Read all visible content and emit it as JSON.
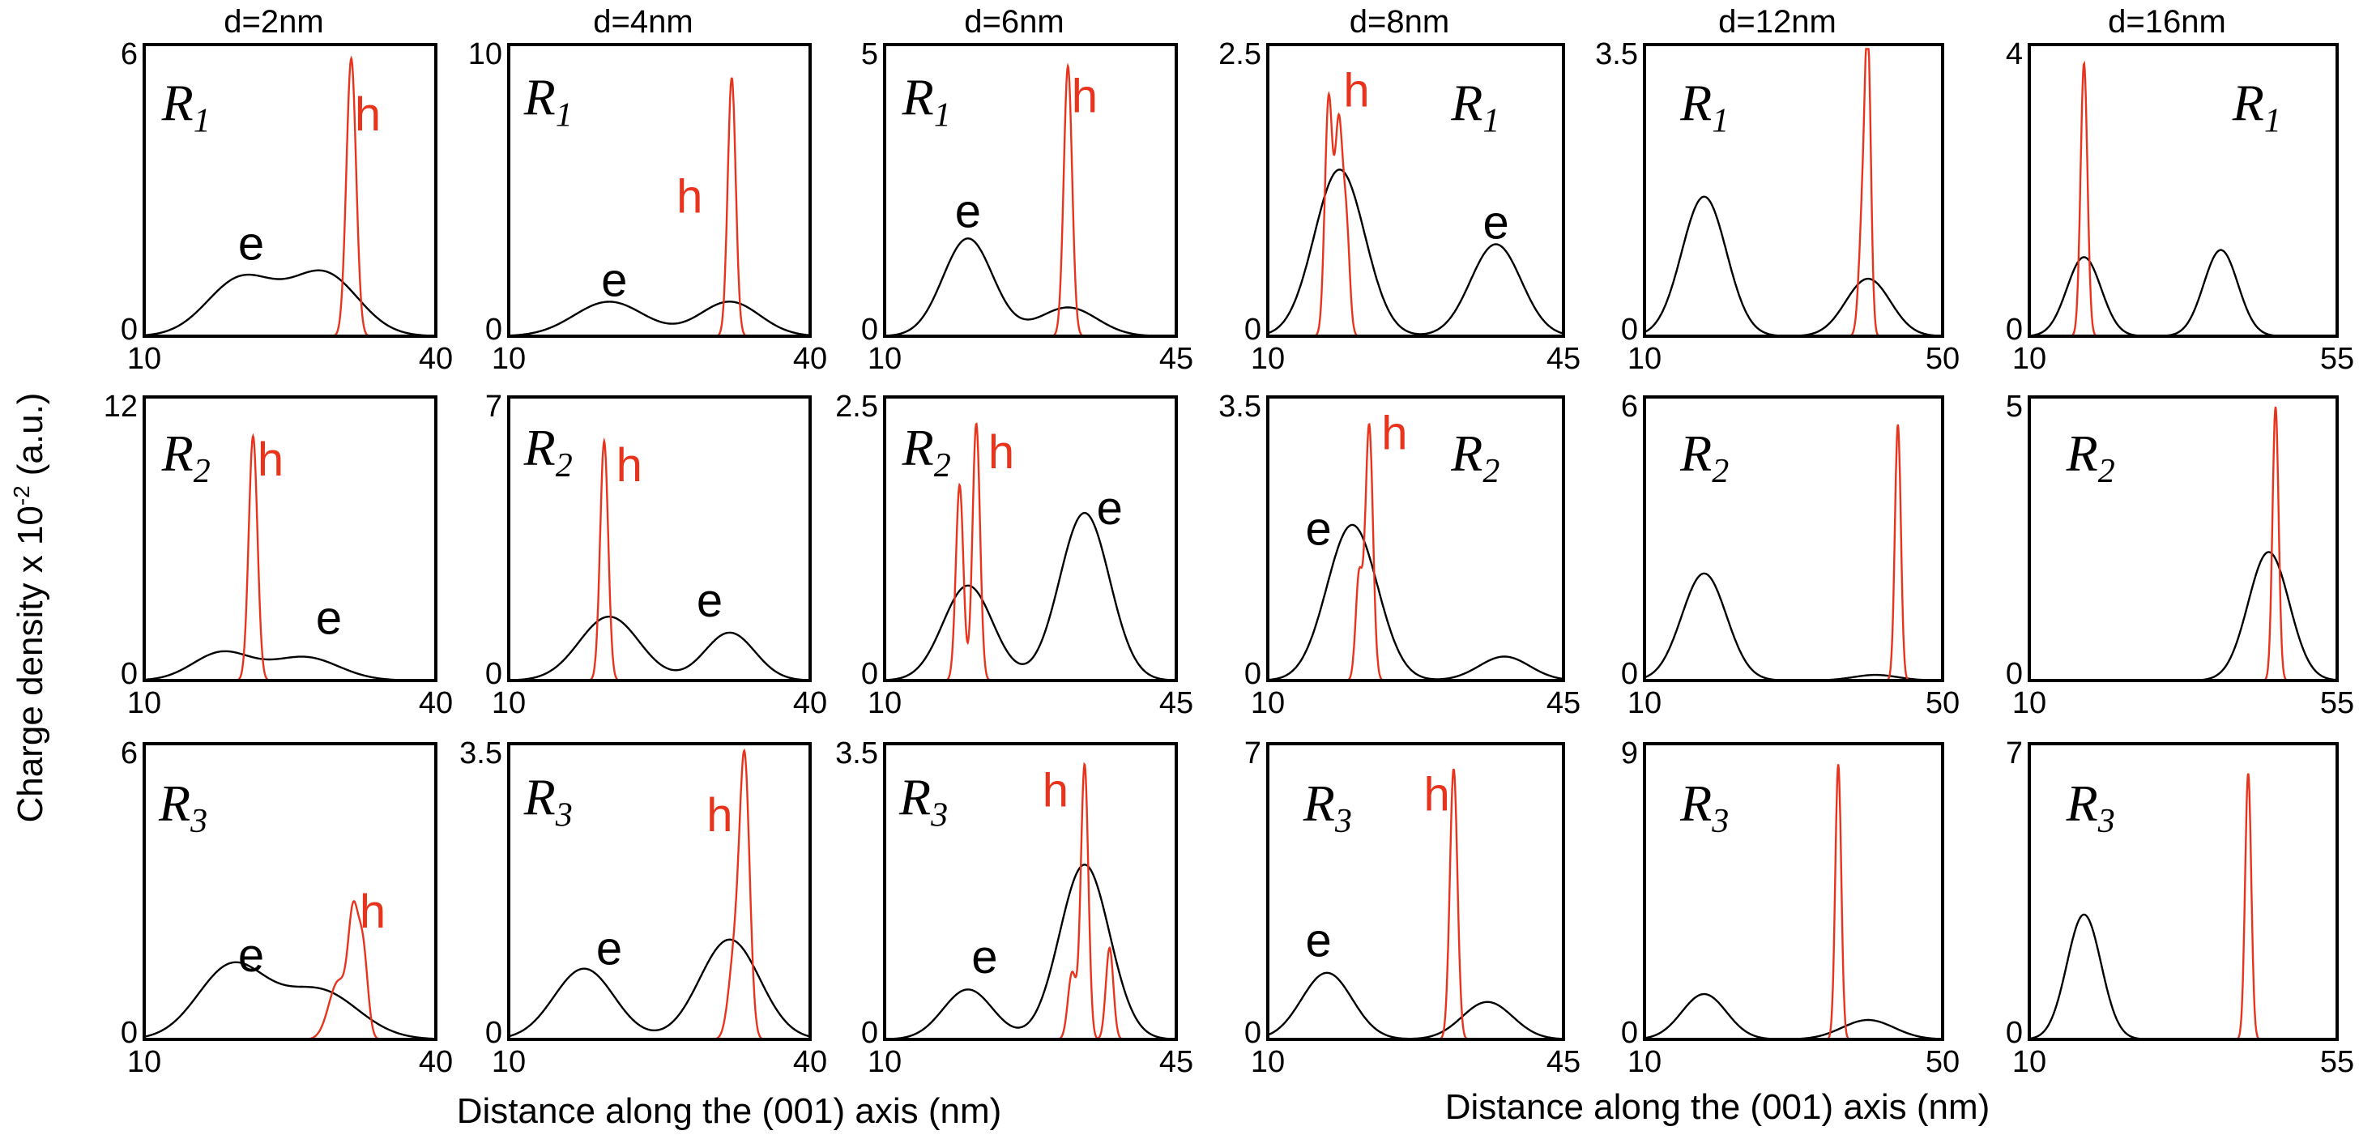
{
  "figure": {
    "y_axis_label": "Charge density x 10",
    "y_axis_exp": "-2",
    "y_axis_unit": "(a.u.)",
    "x_axis_labels": [
      "Distance along the (001) axis (nm)",
      "Distance along the (001) axis (nm)"
    ],
    "colors": {
      "electron": "#000000",
      "hole": "#e8341c"
    }
  },
  "chart_data": [
    {
      "type": "line",
      "column": "d=2nm",
      "row": "R",
      "row_sub": "1",
      "xlim": [
        10,
        40
      ],
      "ylim": [
        0,
        6
      ],
      "xticks": [
        "10",
        "40"
      ],
      "yticks": [
        "0",
        "6"
      ],
      "series": [
        {
          "name": "e",
          "color": "#000000",
          "peaks": [
            [
              20,
              1.2,
              3.5
            ],
            [
              28.5,
              1.3,
              3.5
            ]
          ]
        },
        {
          "name": "h",
          "color": "#e8341c",
          "peaks": [
            [
              31.3,
              5.8,
              0.5
            ]
          ]
        }
      ],
      "annotations": [
        {
          "text": "e",
          "x": 21,
          "y": 1.6
        },
        {
          "text": "h",
          "x": 33,
          "y": 4.3
        }
      ]
    },
    {
      "type": "line",
      "column": "d=4nm",
      "row": "R",
      "row_sub": "1",
      "xlim": [
        10,
        40
      ],
      "ylim": [
        0,
        10
      ],
      "xticks": [
        "10",
        "40"
      ],
      "yticks": [
        "0",
        "10"
      ],
      "series": [
        {
          "name": "e",
          "color": "#000000",
          "peaks": [
            [
              20,
              1.2,
              3.5
            ],
            [
              32,
              1.2,
              3
            ]
          ]
        },
        {
          "name": "h",
          "color": "#e8341c",
          "peaks": [
            [
              32.2,
              9,
              0.4
            ]
          ]
        }
      ],
      "annotations": [
        {
          "text": "e",
          "x": 20.5,
          "y": 1.4
        },
        {
          "text": "h",
          "x": 28,
          "y": 4.3
        }
      ]
    },
    {
      "type": "line",
      "column": "d=6nm",
      "row": "R",
      "row_sub": "1",
      "xlim": [
        10,
        45
      ],
      "ylim": [
        0,
        5
      ],
      "xticks": [
        "10",
        "45"
      ],
      "yticks": [
        "0",
        "5"
      ],
      "series": [
        {
          "name": "e",
          "color": "#000000",
          "peaks": [
            [
              20,
              1.7,
              3
            ],
            [
              32,
              0.5,
              3.5
            ]
          ]
        },
        {
          "name": "h",
          "color": "#e8341c",
          "peaks": [
            [
              32,
              4.7,
              0.5
            ]
          ]
        }
      ],
      "annotations": [
        {
          "text": "e",
          "x": 20,
          "y": 1.9
        },
        {
          "text": "h",
          "x": 34,
          "y": 3.9
        }
      ]
    },
    {
      "type": "line",
      "column": "d=8nm",
      "row": "R",
      "row_sub": "1",
      "xlim": [
        10,
        45
      ],
      "ylim": [
        0,
        2.5
      ],
      "xticks": [
        "10",
        "45"
      ],
      "yticks": [
        "0",
        "2.5"
      ],
      "series": [
        {
          "name": "e",
          "color": "#000000",
          "peaks": [
            [
              18.5,
              1.45,
              3
            ],
            [
              37,
              0.8,
              3
            ]
          ]
        },
        {
          "name": "h",
          "color": "#e8341c",
          "peaks": [
            [
              17.2,
              2.05,
              0.45
            ],
            [
              18.4,
              1.8,
              0.45
            ],
            [
              19.3,
              0.9,
              0.4
            ]
          ]
        }
      ],
      "annotations": [
        {
          "text": "e",
          "x": 37,
          "y": 0.85
        },
        {
          "text": "h",
          "x": 20.5,
          "y": 2.0
        }
      ]
    },
    {
      "type": "line",
      "column": "d=12nm",
      "row": "R",
      "row_sub": "1",
      "xlim": [
        10,
        50
      ],
      "ylim": [
        0,
        3.5
      ],
      "xticks": [
        "10",
        "50"
      ],
      "yticks": [
        "0",
        "3.5"
      ],
      "series": [
        {
          "name": "e",
          "color": "#000000",
          "peaks": [
            [
              18,
              1.7,
              3
            ],
            [
              40,
              0.7,
              3
            ]
          ]
        },
        {
          "name": "h",
          "color": "#e8341c",
          "peaks": [
            [
              40,
              3.2,
              0.4
            ],
            [
              39.3,
              1.5,
              0.5
            ]
          ]
        }
      ],
      "annotations": []
    },
    {
      "type": "line",
      "column": "d=16nm",
      "row": "R",
      "row_sub": "1",
      "xlim": [
        10,
        55
      ],
      "ylim": [
        0,
        4
      ],
      "xticks": [
        "10",
        "55"
      ],
      "yticks": [
        "0",
        "4"
      ],
      "series": [
        {
          "name": "e",
          "color": "#000000",
          "peaks": [
            [
              18,
              1.1,
              2.5
            ],
            [
              38,
              1.2,
              2.5
            ]
          ]
        },
        {
          "name": "h",
          "color": "#e8341c",
          "peaks": [
            [
              18,
              3.8,
              0.5
            ]
          ]
        }
      ],
      "annotations": []
    },
    {
      "type": "line",
      "column": "d=2nm",
      "row": "R",
      "row_sub": "2",
      "xlim": [
        10,
        40
      ],
      "ylim": [
        0,
        12
      ],
      "xticks": [
        "10",
        "40"
      ],
      "yticks": [
        "0",
        "12"
      ],
      "series": [
        {
          "name": "e",
          "color": "#000000",
          "peaks": [
            [
              18,
              1.2,
              3
            ],
            [
              26.5,
              1.0,
              3.5
            ]
          ]
        },
        {
          "name": "h",
          "color": "#e8341c",
          "peaks": [
            [
              21.2,
              10.5,
              0.45
            ]
          ]
        }
      ],
      "annotations": [
        {
          "text": "e",
          "x": 29,
          "y": 2.0
        },
        {
          "text": "h",
          "x": 23,
          "y": 8.8
        }
      ]
    },
    {
      "type": "line",
      "column": "d=4nm",
      "row": "R",
      "row_sub": "2",
      "xlim": [
        10,
        40
      ],
      "ylim": [
        0,
        7
      ],
      "xticks": [
        "10",
        "40"
      ],
      "yticks": [
        "0",
        "7"
      ],
      "series": [
        {
          "name": "e",
          "color": "#000000",
          "peaks": [
            [
              20,
              1.6,
              3
            ],
            [
              32,
              1.2,
              2.5
            ]
          ]
        },
        {
          "name": "h",
          "color": "#e8341c",
          "peaks": [
            [
              19.5,
              6.0,
              0.4
            ]
          ]
        }
      ],
      "annotations": [
        {
          "text": "e",
          "x": 30,
          "y": 1.6
        },
        {
          "text": "h",
          "x": 22,
          "y": 5.0
        }
      ]
    },
    {
      "type": "line",
      "column": "d=6nm",
      "row": "R",
      "row_sub": "2",
      "xlim": [
        10,
        45
      ],
      "ylim": [
        0,
        2.5
      ],
      "xticks": [
        "10",
        "45"
      ],
      "yticks": [
        "0",
        "2.5"
      ],
      "series": [
        {
          "name": "e",
          "color": "#000000",
          "peaks": [
            [
              20,
              0.85,
              3
            ],
            [
              34,
              1.5,
              3
            ]
          ]
        },
        {
          "name": "h",
          "color": "#e8341c",
          "peaks": [
            [
              19,
              1.75,
              0.45
            ],
            [
              21,
              2.3,
              0.45
            ]
          ]
        }
      ],
      "annotations": [
        {
          "text": "e",
          "x": 37,
          "y": 1.4
        },
        {
          "text": "h",
          "x": 24,
          "y": 1.9
        }
      ]
    },
    {
      "type": "line",
      "column": "d=8nm",
      "row": "R",
      "row_sub": "2",
      "xlim": [
        10,
        45
      ],
      "ylim": [
        0,
        3.5
      ],
      "xticks": [
        "10",
        "45"
      ],
      "yticks": [
        "0",
        "3.5"
      ],
      "series": [
        {
          "name": "e",
          "color": "#000000",
          "peaks": [
            [
              20,
              1.95,
              3
            ],
            [
              38,
              0.3,
              3
            ]
          ]
        },
        {
          "name": "h",
          "color": "#e8341c",
          "peaks": [
            [
              22,
              3.2,
              0.45
            ],
            [
              20.8,
              1.3,
              0.4
            ]
          ]
        }
      ],
      "annotations": [
        {
          "text": "e",
          "x": 16,
          "y": 1.7
        },
        {
          "text": "h",
          "x": 25,
          "y": 2.9
        }
      ]
    },
    {
      "type": "line",
      "column": "d=12nm",
      "row": "R",
      "row_sub": "2",
      "xlim": [
        10,
        50
      ],
      "ylim": [
        0,
        6
      ],
      "xticks": [
        "10",
        "50"
      ],
      "yticks": [
        "0",
        "6"
      ],
      "series": [
        {
          "name": "e",
          "color": "#000000",
          "peaks": [
            [
              18,
              2.3,
              3
            ],
            [
              41,
              0.12,
              3
            ]
          ]
        },
        {
          "name": "h",
          "color": "#e8341c",
          "peaks": [
            [
              44,
              5.5,
              0.4
            ]
          ]
        }
      ],
      "annotations": []
    },
    {
      "type": "line",
      "column": "d=16nm",
      "row": "R",
      "row_sub": "2",
      "xlim": [
        10,
        55
      ],
      "ylim": [
        0,
        5
      ],
      "xticks": [
        "10",
        "55"
      ],
      "yticks": [
        "0",
        "5"
      ],
      "series": [
        {
          "name": "e",
          "color": "#000000",
          "peaks": [
            [
              45,
              2.3,
              3
            ]
          ]
        },
        {
          "name": "h",
          "color": "#e8341c",
          "peaks": [
            [
              46,
              4.9,
              0.45
            ]
          ]
        }
      ],
      "annotations": []
    },
    {
      "type": "line",
      "column": "d=2nm",
      "row": "R",
      "row_sub": "3",
      "xlim": [
        10,
        40
      ],
      "ylim": [
        0,
        6
      ],
      "xticks": [
        "10",
        "40"
      ],
      "yticks": [
        "0",
        "6"
      ],
      "series": [
        {
          "name": "e",
          "color": "#000000",
          "peaks": [
            [
              19,
              1.5,
              3.5
            ],
            [
              28,
              1.0,
              4
            ]
          ]
        },
        {
          "name": "h",
          "color": "#e8341c",
          "peaks": [
            [
              30,
              1.2,
              1
            ],
            [
              31.5,
              2.2,
              0.5
            ],
            [
              32.5,
              1.8,
              0.5
            ]
          ]
        }
      ],
      "annotations": [
        {
          "text": "e",
          "x": 21,
          "y": 1.4
        },
        {
          "text": "h",
          "x": 33.5,
          "y": 2.3
        }
      ]
    },
    {
      "type": "line",
      "column": "d=4nm",
      "row": "R",
      "row_sub": "3",
      "xlim": [
        10,
        40
      ],
      "ylim": [
        0,
        3.5
      ],
      "xticks": [
        "10",
        "40"
      ],
      "yticks": [
        "0",
        "3.5"
      ],
      "series": [
        {
          "name": "e",
          "color": "#000000",
          "peaks": [
            [
              17.5,
              0.85,
              3
            ],
            [
              32,
              1.2,
              3
            ]
          ]
        },
        {
          "name": "h",
          "color": "#e8341c",
          "peaks": [
            [
              33.5,
              3.2,
              0.5
            ],
            [
              32.5,
              1.0,
              0.6
            ]
          ]
        }
      ],
      "annotations": [
        {
          "text": "e",
          "x": 20,
          "y": 0.9
        },
        {
          "text": "h",
          "x": 31,
          "y": 2.5
        }
      ]
    },
    {
      "type": "line",
      "column": "d=6nm",
      "row": "R",
      "row_sub": "3",
      "xlim": [
        10,
        45
      ],
      "ylim": [
        0,
        3.5
      ],
      "xticks": [
        "10",
        "45"
      ],
      "yticks": [
        "0",
        "3.5"
      ],
      "series": [
        {
          "name": "e",
          "color": "#000000",
          "peaks": [
            [
              20,
              0.6,
              3
            ],
            [
              34,
              2.1,
              3
            ]
          ]
        },
        {
          "name": "h",
          "color": "#e8341c",
          "peaks": [
            [
              34,
              3.3,
              0.45
            ],
            [
              37,
              1.1,
              0.45
            ],
            [
              32.5,
              0.8,
              0.5
            ]
          ]
        }
      ],
      "annotations": [
        {
          "text": "e",
          "x": 22,
          "y": 0.8
        },
        {
          "text": "h",
          "x": 30.5,
          "y": 2.8
        }
      ]
    },
    {
      "type": "line",
      "column": "d=8nm",
      "row": "R",
      "row_sub": "3",
      "xlim": [
        10,
        45
      ],
      "ylim": [
        0,
        7
      ],
      "xticks": [
        "10",
        "45"
      ],
      "yticks": [
        "0",
        "7"
      ],
      "series": [
        {
          "name": "e",
          "color": "#000000",
          "peaks": [
            [
              17,
              1.6,
              3
            ],
            [
              36,
              0.9,
              3
            ]
          ]
        },
        {
          "name": "h",
          "color": "#e8341c",
          "peaks": [
            [
              32,
              6.5,
              0.45
            ]
          ]
        }
      ],
      "annotations": [
        {
          "text": "e",
          "x": 16,
          "y": 2.0
        },
        {
          "text": "h",
          "x": 30,
          "y": 5.5
        }
      ]
    },
    {
      "type": "line",
      "column": "d=12nm",
      "row": "R",
      "row_sub": "3",
      "xlim": [
        10,
        50
      ],
      "ylim": [
        0,
        9
      ],
      "xticks": [
        "10",
        "50"
      ],
      "yticks": [
        "0",
        "9"
      ],
      "series": [
        {
          "name": "e",
          "color": "#000000",
          "peaks": [
            [
              18,
              1.4,
              3
            ],
            [
              40,
              0.6,
              3.5
            ]
          ]
        },
        {
          "name": "h",
          "color": "#e8341c",
          "peaks": [
            [
              36,
              8.5,
              0.4
            ]
          ]
        }
      ],
      "annotations": []
    },
    {
      "type": "line",
      "column": "d=16nm",
      "row": "R",
      "row_sub": "3",
      "xlim": [
        10,
        55
      ],
      "ylim": [
        0,
        7
      ],
      "xticks": [
        "10",
        "55"
      ],
      "yticks": [
        "0",
        "7"
      ],
      "series": [
        {
          "name": "e",
          "color": "#000000",
          "peaks": [
            [
              18,
              3.0,
              2.5
            ]
          ]
        },
        {
          "name": "h",
          "color": "#e8341c",
          "peaks": [
            [
              42,
              6.4,
              0.45
            ]
          ]
        }
      ],
      "annotations": []
    }
  ]
}
